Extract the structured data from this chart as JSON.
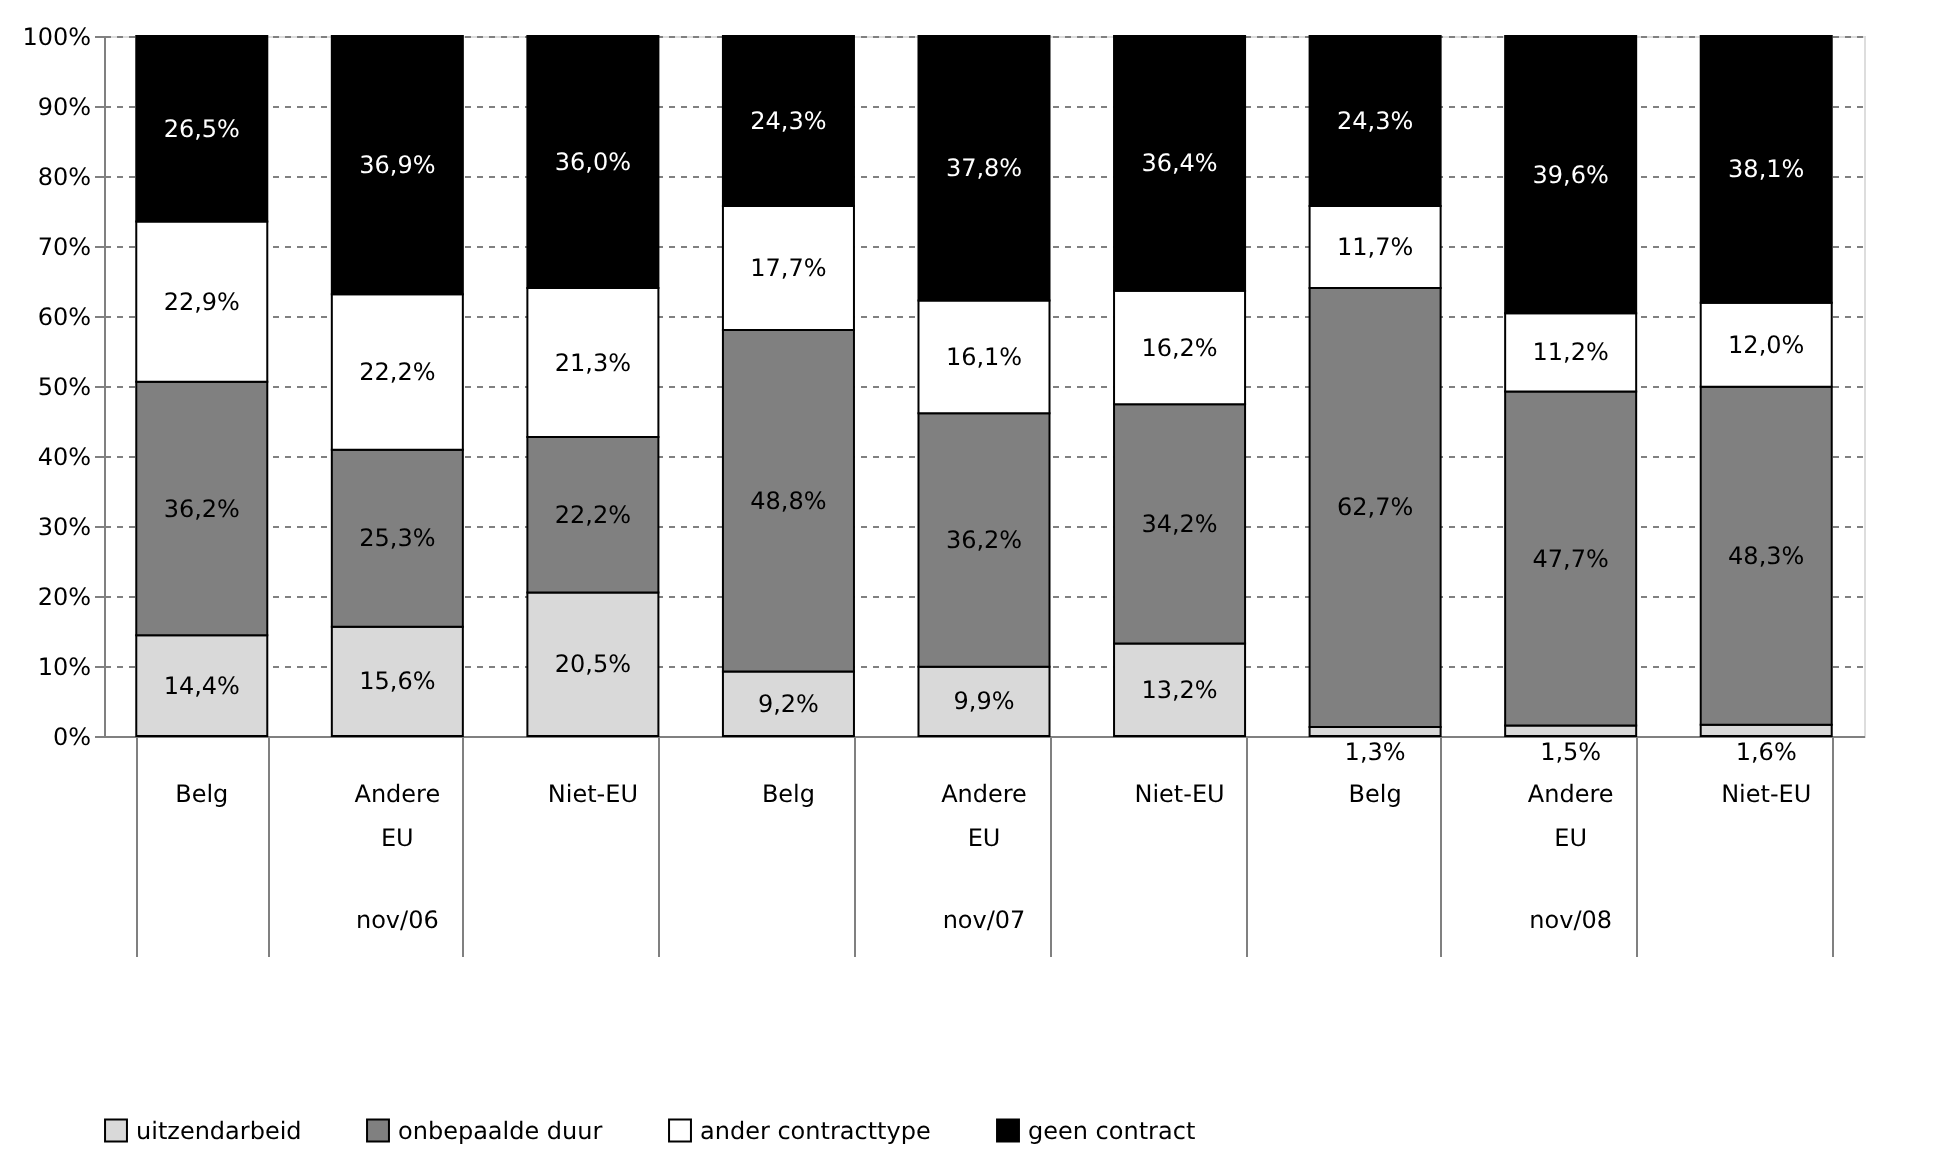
{
  "chart_data": {
    "type": "bar",
    "stacked": true,
    "categories": [
      "Belg",
      "Andere EU",
      "Niet-EU",
      "Belg",
      "Andere EU",
      "Niet-EU",
      "Belg",
      "Andere EU",
      "Niet-EU"
    ],
    "annotations": [
      "nov/06",
      "nov/07",
      "nov/08"
    ],
    "series": [
      {
        "name": "uitzendarbeid",
        "color": "#d9d9d9",
        "values": [
          14.4,
          15.6,
          20.5,
          9.2,
          9.9,
          13.2,
          1.3,
          1.5,
          1.6
        ],
        "value_labels": [
          "14,4%",
          "15,6%",
          "20,5%",
          "9,2%",
          "9,9%",
          "13,2%",
          "1,3%",
          "1,5%",
          "1,6%"
        ]
      },
      {
        "name": "onbepaalde duur",
        "color": "#808080",
        "values": [
          36.2,
          25.3,
          22.2,
          48.8,
          36.2,
          34.2,
          62.7,
          47.7,
          48.3
        ],
        "value_labels": [
          "36,2%",
          "25,3%",
          "22,2%",
          "48,8%",
          "36,2%",
          "34,2%",
          "62,7%",
          "47,7%",
          "48,3%"
        ]
      },
      {
        "name": "ander contracttype",
        "color": "#ffffff",
        "values": [
          22.9,
          22.2,
          21.3,
          17.7,
          16.1,
          16.2,
          11.7,
          11.2,
          12.0
        ],
        "value_labels": [
          "22,9%",
          "22,2%",
          "21,3%",
          "17,7%",
          "16,1%",
          "16,2%",
          "11,7%",
          "11,2%",
          "12,0%"
        ]
      },
      {
        "name": "geen contract",
        "color": "#000000",
        "values": [
          26.5,
          36.9,
          36.0,
          24.3,
          37.8,
          36.4,
          24.3,
          39.6,
          38.1
        ],
        "value_labels": [
          "26,5%",
          "36,9%",
          "36,0%",
          "24,3%",
          "37,8%",
          "36,4%",
          "24,3%",
          "39,6%",
          "38,1%"
        ]
      }
    ],
    "ylim": [
      0,
      100
    ],
    "yticks": [
      {
        "value": 0,
        "label": "0%"
      },
      {
        "value": 10,
        "label": "10%"
      },
      {
        "value": 20,
        "label": "20%"
      },
      {
        "value": 30,
        "label": "30%"
      },
      {
        "value": 40,
        "label": "40%"
      },
      {
        "value": 50,
        "label": "50%"
      },
      {
        "value": 60,
        "label": "60%"
      },
      {
        "value": 70,
        "label": "70%"
      },
      {
        "value": 80,
        "label": "80%"
      },
      {
        "value": 90,
        "label": "90%"
      },
      {
        "value": 100,
        "label": "100%"
      }
    ],
    "grid": "y",
    "legend": "bottom"
  }
}
